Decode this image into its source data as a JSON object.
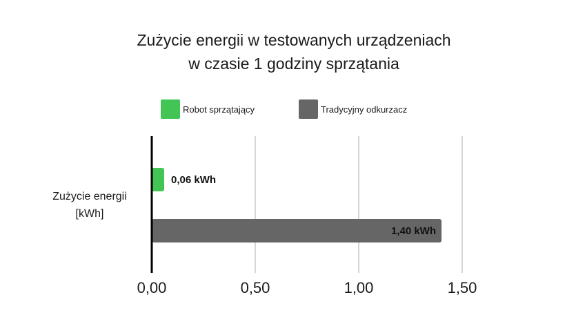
{
  "chart_data": {
    "type": "bar",
    "orientation": "horizontal",
    "title": [
      "Zużycie energii w testowanych urządzeniach",
      "w czasie 1 godziny sprzątania"
    ],
    "category_label": [
      "Zużycie energii",
      "[kWh]"
    ],
    "xlim": [
      0,
      1.5
    ],
    "ticks": [
      {
        "value": 0,
        "label": "0,00"
      },
      {
        "value": 0.5,
        "label": "0,50"
      },
      {
        "value": 1.0,
        "label": "1,00"
      },
      {
        "value": 1.5,
        "label": "1,50"
      }
    ],
    "grid": true,
    "legend_position": "top",
    "series": [
      {
        "name": "Robot sprzątający",
        "value": 0.06,
        "label": "0,06 kWh",
        "color": "#43c556",
        "label_position": "outside"
      },
      {
        "name": "Tradycyjny odkurzacz",
        "value": 1.4,
        "label": "1,40 kWh",
        "color": "#666666",
        "label_position": "inside"
      }
    ]
  }
}
